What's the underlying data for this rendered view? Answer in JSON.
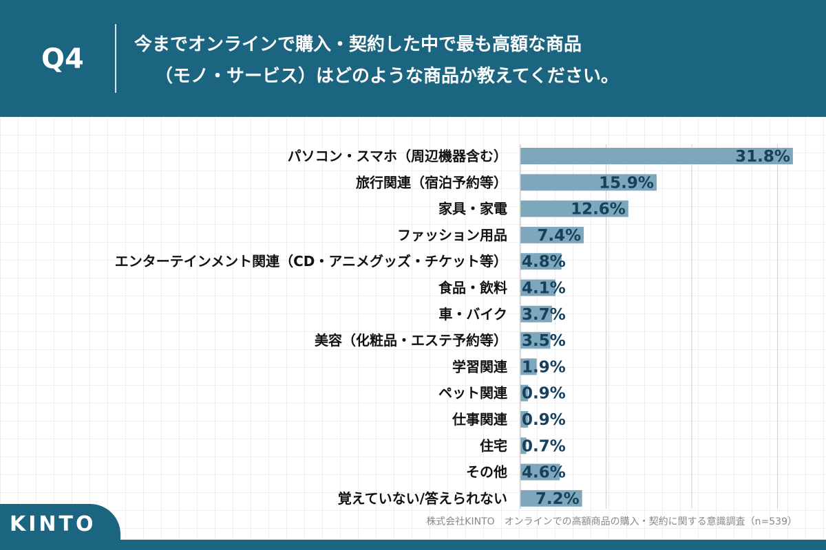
{
  "header": {
    "q_label": "Q4",
    "question_line1": "今までオンラインで購入・契約した中で最も高額な商品",
    "question_line2": "（モノ・サービス）はどのような商品か教えてください。"
  },
  "chart_data": {
    "type": "bar",
    "orientation": "horizontal",
    "categories": [
      "パソコン・スマホ（周辺機器含む）",
      "旅行関連（宿泊予約等）",
      "家具・家電",
      "ファッション用品",
      "エンターテインメント関連（CD・アニメグッズ・チケット等）",
      "食品・飲料",
      "車・バイク",
      "美容（化粧品・エステ予約等）",
      "学習関連",
      "ペット関連",
      "仕事関連",
      "住宅",
      "その他",
      "覚えていない/答えられない"
    ],
    "values": [
      31.8,
      15.9,
      12.6,
      7.4,
      4.8,
      4.1,
      3.7,
      3.5,
      1.9,
      0.9,
      0.9,
      0.7,
      4.6,
      7.2
    ],
    "value_labels": [
      "31.8%",
      "15.9%",
      "12.6%",
      "7.4%",
      "4.8%",
      "4.1%",
      "3.7%",
      "3.5%",
      "1.9%",
      "0.9%",
      "0.9%",
      "0.7%",
      "4.6%",
      "7.2%"
    ],
    "unit": "%",
    "xlim": [
      0,
      40
    ],
    "grid": true,
    "bar_color": "#7fa7bb",
    "value_label_color": "#16405d"
  },
  "footer": {
    "source": "株式会社KINTO　オンラインでの高額商品の購入・契約に関する意識調査（n=539）",
    "logo": "KINTO"
  },
  "colors": {
    "brand": "#1b6581",
    "panel": "#ffffff",
    "bar": "#7fa7bb"
  }
}
